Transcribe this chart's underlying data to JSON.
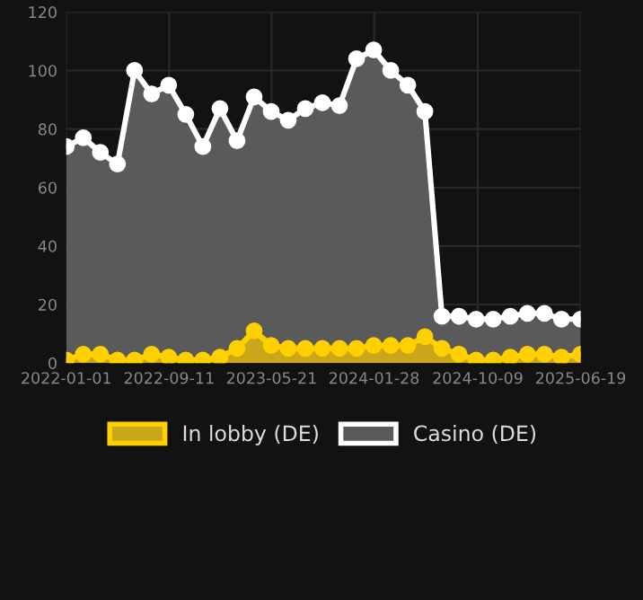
{
  "chart_data": {
    "type": "area",
    "x": [
      "2022-01-01",
      "2022-02-12",
      "2022-03-26",
      "2022-05-07",
      "2022-06-18",
      "2022-07-30",
      "2022-09-10",
      "2022-10-22",
      "2022-12-03",
      "2023-01-14",
      "2023-02-25",
      "2023-04-08",
      "2023-05-20",
      "2023-07-01",
      "2023-08-12",
      "2023-09-23",
      "2023-11-04",
      "2023-12-16",
      "2024-01-27",
      "2024-03-09",
      "2024-04-20",
      "2024-06-01",
      "2024-07-13",
      "2024-08-24",
      "2024-10-05",
      "2024-11-16",
      "2024-12-28",
      "2025-02-08",
      "2025-03-22",
      "2025-05-03",
      "2025-06-19"
    ],
    "series": [
      {
        "name": "Casino (DE)",
        "color": "#5a5a5a",
        "values": [
          74,
          77,
          72,
          68,
          100,
          92,
          95,
          85,
          74,
          87,
          76,
          91,
          86,
          83,
          87,
          89,
          88,
          104,
          107,
          100,
          95,
          86,
          16,
          16,
          15,
          15,
          16,
          17,
          17,
          15,
          15
        ]
      },
      {
        "name": "In lobby (DE)",
        "color": "#c9a61a",
        "values": [
          1,
          3,
          3,
          1,
          1,
          3,
          2,
          1,
          1,
          2,
          5,
          11,
          6,
          5,
          5,
          5,
          5,
          5,
          6,
          6,
          6,
          9,
          5,
          3,
          1,
          1,
          2,
          3,
          3,
          2,
          3
        ]
      }
    ],
    "xlim": [
      "2022-01-01",
      "2025-06-19"
    ],
    "xticks": [
      "2022-01-01",
      "2022-09-11",
      "2023-05-21",
      "2024-01-28",
      "2024-10-09",
      "2025-06-19"
    ],
    "ylim": [
      0,
      120
    ],
    "yticks": [
      0,
      20,
      40,
      60,
      80,
      100,
      120
    ],
    "grid": true,
    "legend": "bottom",
    "marker": "circle",
    "line_style": "solid"
  }
}
